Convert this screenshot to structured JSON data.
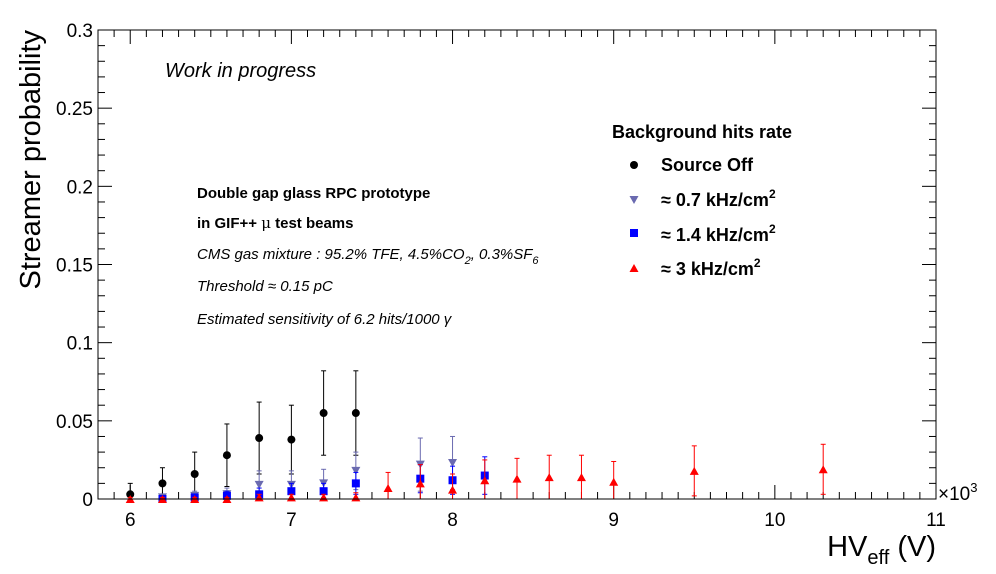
{
  "chart_data": {
    "type": "scatter",
    "title": "",
    "xlabel": "HV",
    "xlabel_sub": "eff",
    "xlabel_unit": " (V)",
    "x_multiplier": "×10",
    "x_multiplier_exp": "3",
    "ylabel": "Streamer probability",
    "xlim": [
      5.8,
      11.0
    ],
    "ylim": [
      0,
      0.3
    ],
    "x_ticks": [
      "6",
      "7",
      "8",
      "9",
      "10",
      "11"
    ],
    "y_ticks": [
      "0",
      "0.05",
      "0.1",
      "0.15",
      "0.2",
      "0.25",
      "0.3"
    ],
    "annotations": {
      "work_in_progress": "Work in progress",
      "line1": "Double gap glass RPC prototype",
      "line2_a": "in GIF++ ",
      "line2_mu": "μ",
      "line2_b": " test beams",
      "line3_a": "CMS gas mixture : 95.2% TFE, 4.5%CO",
      "line3_sub1": "2",
      "line3_b": ", 0.3%SF",
      "line3_sub2": "6",
      "line4": "Threshold ≈ 0.15 pC",
      "line5": "Estimated sensitivity of 6.2 hits/1000 γ"
    },
    "legend": {
      "title": "Background hits rate",
      "position": "top-right",
      "entries": [
        {
          "label": "Source Off",
          "sup": ""
        },
        {
          "label": "≈ 0.7 kHz/cm",
          "sup": "2"
        },
        {
          "label": "≈ 1.4 kHz/cm",
          "sup": "2"
        },
        {
          "label": "≈ 3 kHz/cm",
          "sup": "2"
        }
      ]
    },
    "series": [
      {
        "marker": "circle",
        "color": "#000000",
        "x": [
          6.0,
          6.2,
          6.4,
          6.6,
          6.8,
          7.0,
          7.2,
          7.4
        ],
        "y": [
          0.003,
          0.01,
          0.016,
          0.028,
          0.039,
          0.038,
          0.055,
          0.055
        ],
        "err": [
          0.007,
          0.01,
          0.014,
          0.02,
          0.023,
          0.022,
          0.027,
          0.027
        ]
      },
      {
        "marker": "triangle-down",
        "color": "#6a6ab0",
        "x": [
          6.2,
          6.4,
          6.6,
          6.8,
          7.0,
          7.2,
          7.4,
          7.8,
          8.0
        ],
        "y": [
          0.001,
          0.002,
          0.003,
          0.009,
          0.009,
          0.01,
          0.018,
          0.022,
          0.023
        ],
        "err": [
          0.002,
          0.003,
          0.004,
          0.009,
          0.009,
          0.009,
          0.012,
          0.017,
          0.017
        ]
      },
      {
        "marker": "square",
        "color": "#0000ff",
        "x": [
          6.2,
          6.4,
          6.6,
          6.8,
          7.0,
          7.2,
          7.4,
          7.8,
          8.0,
          8.2
        ],
        "y": [
          0.0,
          0.001,
          0.002,
          0.003,
          0.005,
          0.005,
          0.01,
          0.013,
          0.012,
          0.015
        ],
        "err": [
          0.001,
          0.002,
          0.003,
          0.004,
          0.005,
          0.005,
          0.007,
          0.009,
          0.009,
          0.012
        ]
      },
      {
        "marker": "triangle-up",
        "color": "#ff0000",
        "x": [
          6.0,
          6.2,
          6.4,
          6.6,
          6.8,
          7.0,
          7.2,
          7.4,
          7.6,
          7.8,
          8.0,
          8.2,
          8.4,
          8.6,
          8.8,
          9.0,
          9.5,
          10.3
        ],
        "y": [
          0.0,
          0.0,
          0.0,
          0.0,
          0.001,
          0.001,
          0.001,
          0.001,
          0.007,
          0.01,
          0.006,
          0.012,
          0.013,
          0.014,
          0.014,
          0.011,
          0.018,
          0.019
        ],
        "err": [
          0.001,
          0.001,
          0.001,
          0.001,
          0.002,
          0.002,
          0.002,
          0.003,
          0.01,
          0.012,
          0.01,
          0.013,
          0.013,
          0.014,
          0.014,
          0.013,
          0.016,
          0.016
        ]
      }
    ]
  }
}
